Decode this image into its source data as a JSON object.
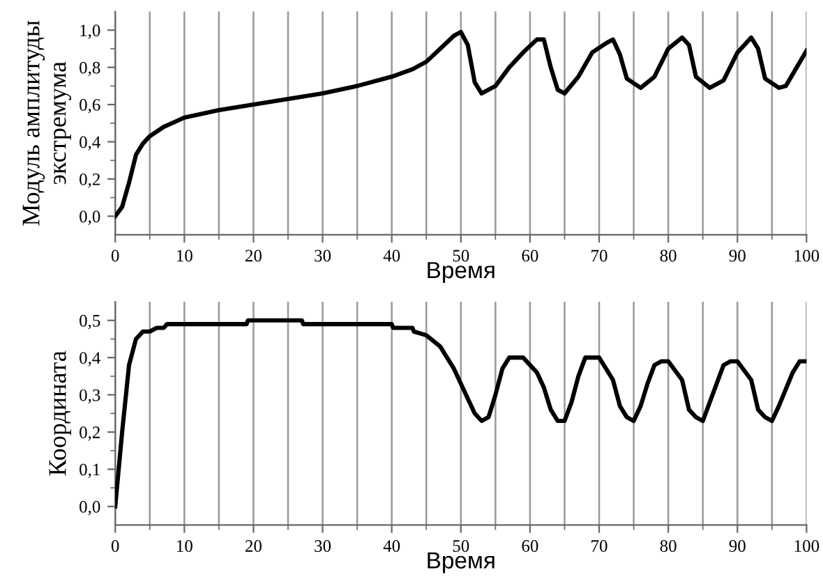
{
  "chart_data": [
    {
      "type": "line",
      "xlabel": "Время",
      "ylabel": "Модуль амплитуды\nэкстремума",
      "grid": "x",
      "marker": "none",
      "line_style": "solid",
      "xlim": [
        0,
        100
      ],
      "xticks": [
        0,
        10,
        20,
        30,
        40,
        50,
        60,
        70,
        80,
        90,
        100
      ],
      "ylim": [
        -0.1,
        1.1
      ],
      "yticks": [
        {
          "value": 0.0,
          "label": "0,0"
        },
        {
          "value": 0.2,
          "label": "0,2"
        },
        {
          "value": 0.4,
          "label": "0,4"
        },
        {
          "value": 0.6,
          "label": "0,6"
        },
        {
          "value": 0.8,
          "label": "0,8"
        },
        {
          "value": 1.0,
          "label": "1,0"
        }
      ],
      "series": [
        {
          "color": "#000000",
          "x": [
            0,
            1,
            2,
            3,
            4,
            5,
            7,
            10,
            15,
            20,
            25,
            30,
            35,
            40,
            43,
            45,
            47,
            49,
            50,
            51,
            52,
            53,
            55,
            57,
            59,
            61,
            62,
            63,
            64,
            65,
            67,
            69,
            71,
            72,
            73,
            74,
            76,
            78,
            80,
            82,
            83,
            84,
            86,
            88,
            90,
            92,
            93,
            94,
            96,
            97,
            100
          ],
          "values": [
            0.0,
            0.05,
            0.18,
            0.33,
            0.39,
            0.43,
            0.48,
            0.53,
            0.57,
            0.6,
            0.63,
            0.66,
            0.7,
            0.75,
            0.79,
            0.83,
            0.9,
            0.97,
            0.99,
            0.92,
            0.72,
            0.66,
            0.7,
            0.8,
            0.88,
            0.95,
            0.95,
            0.8,
            0.68,
            0.66,
            0.75,
            0.88,
            0.93,
            0.95,
            0.87,
            0.74,
            0.69,
            0.75,
            0.9,
            0.96,
            0.92,
            0.75,
            0.69,
            0.73,
            0.88,
            0.96,
            0.9,
            0.74,
            0.69,
            0.7,
            0.89
          ]
        }
      ]
    },
    {
      "type": "line",
      "xlabel": "Время",
      "ylabel": "Координата",
      "grid": "x",
      "marker": "none",
      "line_style": "solid",
      "xlim": [
        0,
        100
      ],
      "xticks": [
        0,
        10,
        20,
        30,
        40,
        50,
        60,
        70,
        80,
        90,
        100
      ],
      "ylim": [
        -0.05,
        0.55
      ],
      "yticks": [
        {
          "value": 0.0,
          "label": "0,0"
        },
        {
          "value": 0.1,
          "label": "0,1"
        },
        {
          "value": 0.2,
          "label": "0,2"
        },
        {
          "value": 0.3,
          "label": "0,3"
        },
        {
          "value": 0.4,
          "label": "0,4"
        },
        {
          "value": 0.5,
          "label": "0,5"
        }
      ],
      "series": [
        {
          "color": "#000000",
          "x": [
            0,
            1,
            2,
            3,
            4,
            5,
            6,
            7,
            7.5,
            19,
            19.2,
            27,
            27.2,
            40,
            40.2,
            43,
            43.2,
            45,
            47,
            49,
            51,
            52,
            53,
            54,
            55,
            56,
            57,
            59,
            61,
            62,
            63,
            64,
            65,
            66,
            67,
            68,
            70,
            72,
            73,
            74,
            75,
            76,
            77,
            78,
            79,
            80,
            82,
            83,
            84,
            85,
            86,
            87,
            88,
            89,
            90,
            92,
            93,
            94,
            95,
            96,
            98,
            99,
            100
          ],
          "values": [
            0,
            0.2,
            0.38,
            0.45,
            0.47,
            0.47,
            0.48,
            0.48,
            0.49,
            0.49,
            0.5,
            0.5,
            0.49,
            0.49,
            0.48,
            0.48,
            0.47,
            0.46,
            0.43,
            0.37,
            0.29,
            0.25,
            0.23,
            0.24,
            0.3,
            0.37,
            0.4,
            0.4,
            0.36,
            0.32,
            0.26,
            0.23,
            0.23,
            0.28,
            0.35,
            0.4,
            0.4,
            0.34,
            0.27,
            0.24,
            0.23,
            0.27,
            0.33,
            0.38,
            0.39,
            0.39,
            0.34,
            0.26,
            0.24,
            0.23,
            0.28,
            0.33,
            0.38,
            0.39,
            0.39,
            0.34,
            0.26,
            0.24,
            0.23,
            0.27,
            0.36,
            0.39,
            0.39
          ]
        }
      ]
    }
  ]
}
